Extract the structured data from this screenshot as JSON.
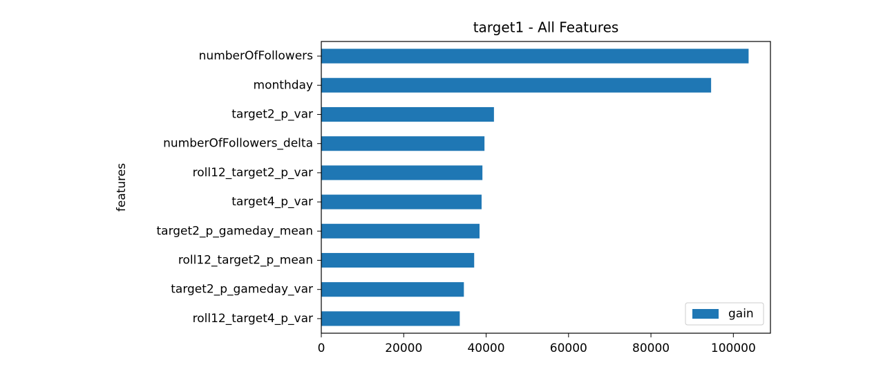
{
  "chart_data": {
    "type": "barh",
    "title": "target1 - All Features",
    "ylabel": "features",
    "categories": [
      "numberOfFollowers",
      "monthday",
      "target2_p_var",
      "numberOfFollowers_delta",
      "roll12_target2_p_var",
      "target4_p_var",
      "target2_p_gameday_mean",
      "roll12_target2_p_mean",
      "target2_p_gameday_var",
      "roll12_target4_p_var"
    ],
    "series": [
      {
        "name": "gain",
        "color": "#1f77b4",
        "values": [
          103700,
          94600,
          41900,
          39600,
          39100,
          38900,
          38400,
          37100,
          34600,
          33600
        ]
      }
    ],
    "xlim": [
      0,
      109000
    ],
    "xticks": [
      0,
      20000,
      40000,
      60000,
      80000,
      100000
    ],
    "legend": "lower right"
  }
}
